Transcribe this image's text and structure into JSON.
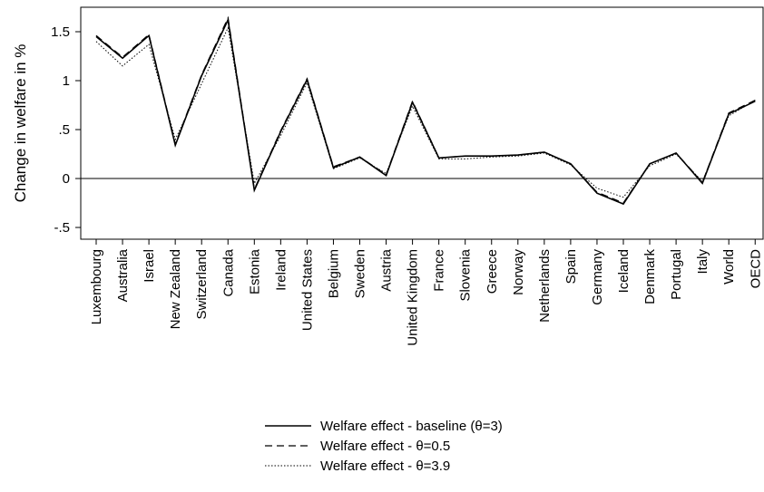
{
  "chart_data": {
    "type": "line",
    "title": "",
    "xlabel": "",
    "ylabel": "Change in welfare in %",
    "ylim": [
      -0.62,
      1.75
    ],
    "yticks": [
      -0.5,
      0,
      0.5,
      1,
      1.5
    ],
    "ytick_labels": [
      "-.5",
      "0",
      ".5",
      "1",
      "1.5"
    ],
    "zero_line": true,
    "grid": false,
    "legend_position": "bottom",
    "categories": [
      "Luxembourg",
      "Australia",
      "Israel",
      "New Zealand",
      "Switzerland",
      "Canada",
      "Estonia",
      "Ireland",
      "United States",
      "Belgium",
      "Sweden",
      "Austria",
      "United Kingdom",
      "France",
      "Slovenia",
      "Greece",
      "Norway",
      "Netherlands",
      "Spain",
      "Germany",
      "Iceland",
      "Denmark",
      "Portugal",
      "Italy",
      "World",
      "OECD"
    ],
    "series": [
      {
        "name": "Welfare effect  - baseline (θ=3)",
        "style": "solid",
        "values": [
          1.45,
          1.23,
          1.46,
          0.34,
          1.05,
          1.62,
          -0.12,
          0.48,
          1.01,
          0.11,
          0.22,
          0.03,
          0.78,
          0.21,
          0.23,
          0.23,
          0.24,
          0.27,
          0.15,
          -0.15,
          -0.26,
          0.15,
          0.26,
          -0.05,
          0.66,
          0.79
        ]
      },
      {
        "name": "Welfare effect  - θ=0.5",
        "style": "dashed",
        "values": [
          1.46,
          1.24,
          1.47,
          0.35,
          1.06,
          1.64,
          -0.11,
          0.49,
          1.02,
          0.12,
          0.22,
          0.04,
          0.79,
          0.21,
          0.23,
          0.23,
          0.24,
          0.27,
          0.15,
          -0.14,
          -0.25,
          0.15,
          0.26,
          -0.04,
          0.67,
          0.8
        ]
      },
      {
        "name": "Welfare effect  - θ=3.9",
        "style": "dotted",
        "values": [
          1.4,
          1.15,
          1.37,
          0.4,
          0.97,
          1.54,
          -0.05,
          0.44,
          0.98,
          0.1,
          0.21,
          0.05,
          0.74,
          0.2,
          0.2,
          0.22,
          0.23,
          0.26,
          0.14,
          -0.1,
          -0.19,
          0.13,
          0.25,
          -0.03,
          0.64,
          0.8
        ]
      }
    ]
  }
}
